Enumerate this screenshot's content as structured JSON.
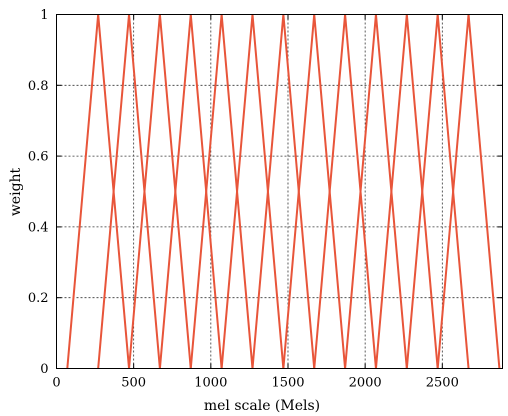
{
  "chart_data": {
    "type": "line",
    "title": "",
    "xlabel": "mel scale (Mels)",
    "ylabel": "weight",
    "xlim": [
      0,
      2890
    ],
    "ylim": [
      0,
      1
    ],
    "xticks": [
      0,
      500,
      1000,
      1500,
      2000,
      2500
    ],
    "yticks": [
      0,
      0.2,
      0.4,
      0.6,
      0.8,
      1
    ],
    "xtick_labels": [
      "0",
      "500",
      "1000",
      "1500",
      "2000",
      "2500"
    ],
    "ytick_labels": [
      "0",
      "0.2",
      "0.4",
      "0.6",
      "0.8",
      "1"
    ],
    "grid": true,
    "grid_x": [
      500,
      1000,
      1500,
      2000,
      2500
    ],
    "grid_y": [
      0.2,
      0.4,
      0.6,
      0.8
    ],
    "series_color": "#e8553a",
    "series": [
      {
        "x": [
          70,
          270,
          470
        ],
        "y": [
          0,
          1,
          0
        ]
      },
      {
        "x": [
          270,
          470,
          670
        ],
        "y": [
          0,
          1,
          0
        ]
      },
      {
        "x": [
          470,
          670,
          870
        ],
        "y": [
          0,
          1,
          0
        ]
      },
      {
        "x": [
          670,
          870,
          1070
        ],
        "y": [
          0,
          1,
          0
        ]
      },
      {
        "x": [
          870,
          1070,
          1270
        ],
        "y": [
          0,
          1,
          0
        ]
      },
      {
        "x": [
          1070,
          1270,
          1470
        ],
        "y": [
          0,
          1,
          0
        ]
      },
      {
        "x": [
          1270,
          1470,
          1670
        ],
        "y": [
          0,
          1,
          0
        ]
      },
      {
        "x": [
          1470,
          1670,
          1870
        ],
        "y": [
          0,
          1,
          0
        ]
      },
      {
        "x": [
          1670,
          1870,
          2070
        ],
        "y": [
          0,
          1,
          0
        ]
      },
      {
        "x": [
          1870,
          2070,
          2270
        ],
        "y": [
          0,
          1,
          0
        ]
      },
      {
        "x": [
          2070,
          2270,
          2470
        ],
        "y": [
          0,
          1,
          0
        ]
      },
      {
        "x": [
          2270,
          2470,
          2670
        ],
        "y": [
          0,
          1,
          0
        ]
      },
      {
        "x": [
          2470,
          2670,
          2870
        ],
        "y": [
          0,
          1,
          0
        ]
      }
    ]
  }
}
